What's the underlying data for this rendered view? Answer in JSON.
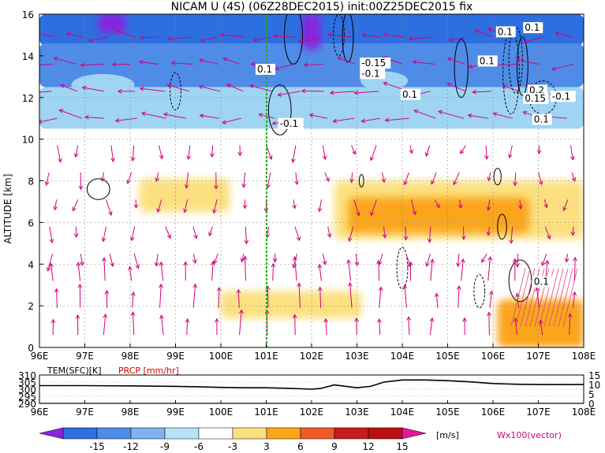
{
  "title": "NICAM U (4S) (06Z28DEC2015) init:00Z25DEC2015 fix",
  "chart_data": [
    {
      "type": "heatmap",
      "title": "NICAM U (4S) (06Z28DEC2015) init:00Z25DEC2015 fix",
      "xlabel": "",
      "ylabel": "ALTITUDE [km]",
      "x_ticks": [
        "96E",
        "97E",
        "98E",
        "99E",
        "100E",
        "101E",
        "102E",
        "103E",
        "104E",
        "105E",
        "106E",
        "107E",
        "108E"
      ],
      "y_ticks": [
        "0",
        "2",
        "4",
        "6",
        "8",
        "10",
        "12",
        "14",
        "16"
      ],
      "xlim": [
        96,
        108
      ],
      "ylim": [
        0,
        16
      ],
      "grid": true,
      "marker_line_lon": 101,
      "contour_labels": [
        "0.1",
        "0.1",
        "0.1",
        "-0.1",
        "-0.15",
        "-0.1",
        "0.1",
        "0.2",
        "0.15",
        "-0.1",
        "0.1",
        "0.1",
        "0.1"
      ],
      "shading_regions": [
        {
          "level": -15,
          "lon": [
            97.3,
            97.9
          ],
          "alt": [
            15.1,
            16
          ]
        },
        {
          "level": -15,
          "lon": [
            101.8,
            102.2
          ],
          "alt": [
            14.3,
            16
          ]
        },
        {
          "level": -12,
          "lon": [
            96,
            108
          ],
          "alt": [
            14.5,
            16
          ]
        },
        {
          "level": -9,
          "lon": [
            96,
            108
          ],
          "alt": [
            12.5,
            14.6
          ]
        },
        {
          "level": -6,
          "lon": [
            96,
            108
          ],
          "alt": [
            10.5,
            12.5
          ]
        },
        {
          "level": 3,
          "lon": [
            98.2,
            100.2
          ],
          "alt": [
            6.5,
            8.1
          ]
        },
        {
          "level": 3,
          "lon": [
            102.5,
            108
          ],
          "alt": [
            5.2,
            8.0
          ]
        },
        {
          "level": 6,
          "lon": [
            102.8,
            106.8
          ],
          "alt": [
            5.5,
            7.2
          ]
        },
        {
          "level": 3,
          "lon": [
            100,
            103.1
          ],
          "alt": [
            1.4,
            2.7
          ]
        },
        {
          "level": 6,
          "lon": [
            106.1,
            108
          ],
          "alt": [
            0,
            2.3
          ]
        }
      ],
      "colorbar": {
        "labels": [
          "-15",
          "-12",
          "-9",
          "-6",
          "-3",
          "3",
          "6",
          "9",
          "12",
          "15"
        ],
        "colors": [
          "#8a22e0",
          "#2d6fe0",
          "#4f8ce8",
          "#7fb2ef",
          "#b7e2f7",
          "#ffffff",
          "#fce07f",
          "#fba51a",
          "#f15a24",
          "#c81a1a",
          "#bb0e0e",
          "#e3179a"
        ],
        "unit": "[m/s]"
      },
      "vector_label": "Wx100(vector)"
    },
    {
      "type": "line",
      "x_ticks": [
        "96E",
        "97E",
        "98E",
        "99E",
        "100E",
        "101E",
        "102E",
        "103E",
        "104E",
        "105E",
        "106E",
        "107E",
        "108E"
      ],
      "left_label": "TEM(SFC)[K]",
      "right_label": "PRCP [mm/hr]",
      "left_ticks": [
        "310",
        "305",
        "300",
        "295",
        "290"
      ],
      "right_ticks": [
        "15",
        "10",
        "5",
        "0"
      ],
      "left_ylim": [
        290,
        310
      ],
      "series": [
        {
          "x": [
            96,
            97,
            98,
            99,
            100,
            100.5,
            101,
            101.5,
            102,
            102.2,
            102.5,
            103,
            103.3,
            103.6,
            104,
            104.5,
            105,
            105.5,
            106,
            106.5,
            107,
            108
          ],
          "y": [
            302.5,
            302.5,
            302.3,
            302.0,
            301.3,
            301.0,
            301.0,
            300.6,
            300.0,
            300.5,
            303.0,
            301.0,
            302.0,
            305.0,
            306.5,
            306.5,
            306.0,
            305.2,
            304.0,
            303.5,
            303.3,
            303.3
          ]
        }
      ]
    }
  ]
}
